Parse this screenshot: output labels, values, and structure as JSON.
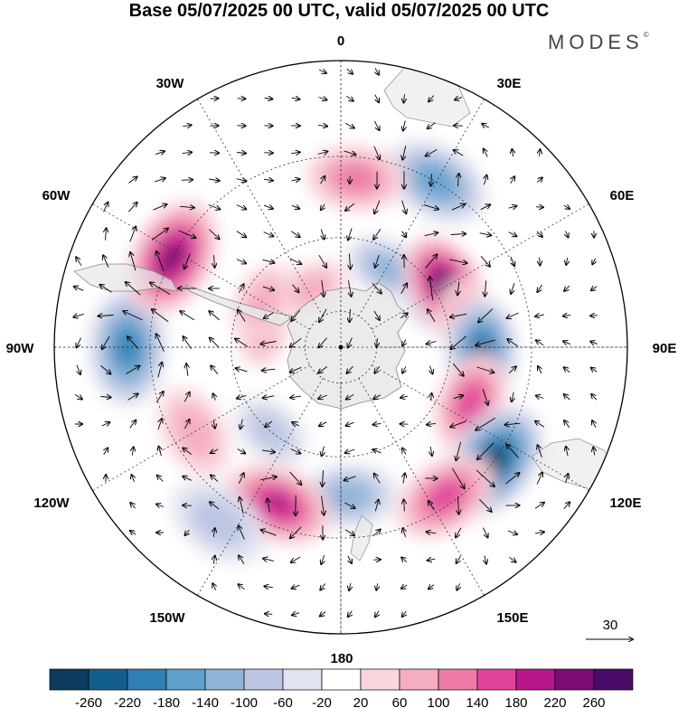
{
  "title": "Base 05/07/2025 00 UTC, valid 05/07/2025 00 UTC",
  "brand": "MODES",
  "brand_mark": "©",
  "longitude_labels": [
    {
      "text": "0",
      "pos": "top"
    },
    {
      "text": "30E",
      "pos": "top-right"
    },
    {
      "text": "60E",
      "pos": "right-upper"
    },
    {
      "text": "90E",
      "pos": "right"
    },
    {
      "text": "120E",
      "pos": "right-lower"
    },
    {
      "text": "150E",
      "pos": "bottom-right"
    },
    {
      "text": "180",
      "pos": "bottom"
    },
    {
      "text": "150W",
      "pos": "bottom-left"
    },
    {
      "text": "120W",
      "pos": "left-lower"
    },
    {
      "text": "90W",
      "pos": "left"
    },
    {
      "text": "60W",
      "pos": "left-upper"
    },
    {
      "text": "30W",
      "pos": "top-left"
    }
  ],
  "vector_reference": "30",
  "projection": "south-polar-stereographic",
  "colorbar": {
    "ticks": [
      "-260",
      "-220",
      "-180",
      "-140",
      "-100",
      "-60",
      "-20",
      "20",
      "60",
      "100",
      "140",
      "180",
      "220",
      "260"
    ],
    "colors": [
      "#0b3c5d",
      "#125f8c",
      "#2f7fb5",
      "#5fa0cd",
      "#8fb4d8",
      "#bcc6e3",
      "#e2e3f0",
      "#ffffff",
      "#f9d6dc",
      "#f4aec0",
      "#ee7aa8",
      "#e0449a",
      "#b8168b",
      "#7c0d77",
      "#4a0a68"
    ]
  },
  "anomalies": [
    {
      "lon": 30,
      "lat": -40,
      "value": -140
    },
    {
      "lon": 58,
      "lat": -62,
      "value": -120
    },
    {
      "lon": 5,
      "lat": -45,
      "value": 100
    },
    {
      "lon": 333,
      "lat": -72,
      "value": 80
    },
    {
      "lon": 30,
      "lat": -65,
      "value": -100
    },
    {
      "lon": 60,
      "lat": -57,
      "value": 260
    },
    {
      "lon": 80,
      "lat": -55,
      "value": 100
    },
    {
      "lon": 92,
      "lat": -52,
      "value": -220
    },
    {
      "lon": 113,
      "lat": -52,
      "value": 160
    },
    {
      "lon": 127,
      "lat": -40,
      "value": -260
    },
    {
      "lon": 145,
      "lat": -42,
      "value": 140
    },
    {
      "lon": 177,
      "lat": -50,
      "value": -120
    },
    {
      "lon": 202,
      "lat": -45,
      "value": 200
    },
    {
      "lon": 220,
      "lat": -60,
      "value": -60
    },
    {
      "lon": 215,
      "lat": -35,
      "value": -60
    },
    {
      "lon": 240,
      "lat": -45,
      "value": 60
    },
    {
      "lon": 270,
      "lat": -35,
      "value": -180
    },
    {
      "lon": 298,
      "lat": -40,
      "value": 240
    },
    {
      "lon": 283,
      "lat": -68,
      "value": 60
    },
    {
      "lon": 300,
      "lat": -65,
      "value": 80
    }
  ]
}
